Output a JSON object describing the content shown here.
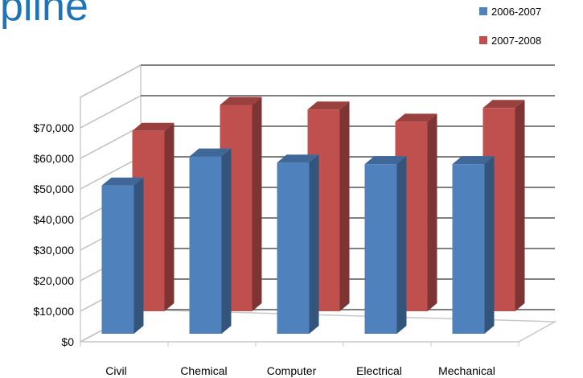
{
  "title": "pline",
  "chart_data": {
    "type": "bar",
    "categories": [
      "Civil",
      "Chemical",
      "Computer",
      "Electrical",
      "Mechanical"
    ],
    "series": [
      {
        "name": "2006-2007",
        "values": [
          48500,
          58000,
          56000,
          55500,
          55500
        ],
        "color": "#4f81bd"
      },
      {
        "name": "2007-2008",
        "values": [
          59000,
          67500,
          66000,
          62000,
          66500
        ],
        "color": "#c0504d"
      }
    ],
    "yticks": [
      "$0",
      "$10,000",
      "$20,000",
      "$30,000",
      "$40,000",
      "$50,000",
      "$60,000",
      "$70,000"
    ],
    "ylim": [
      0,
      70000
    ],
    "grid": true,
    "legend_position": "top-right",
    "three_d": true
  }
}
